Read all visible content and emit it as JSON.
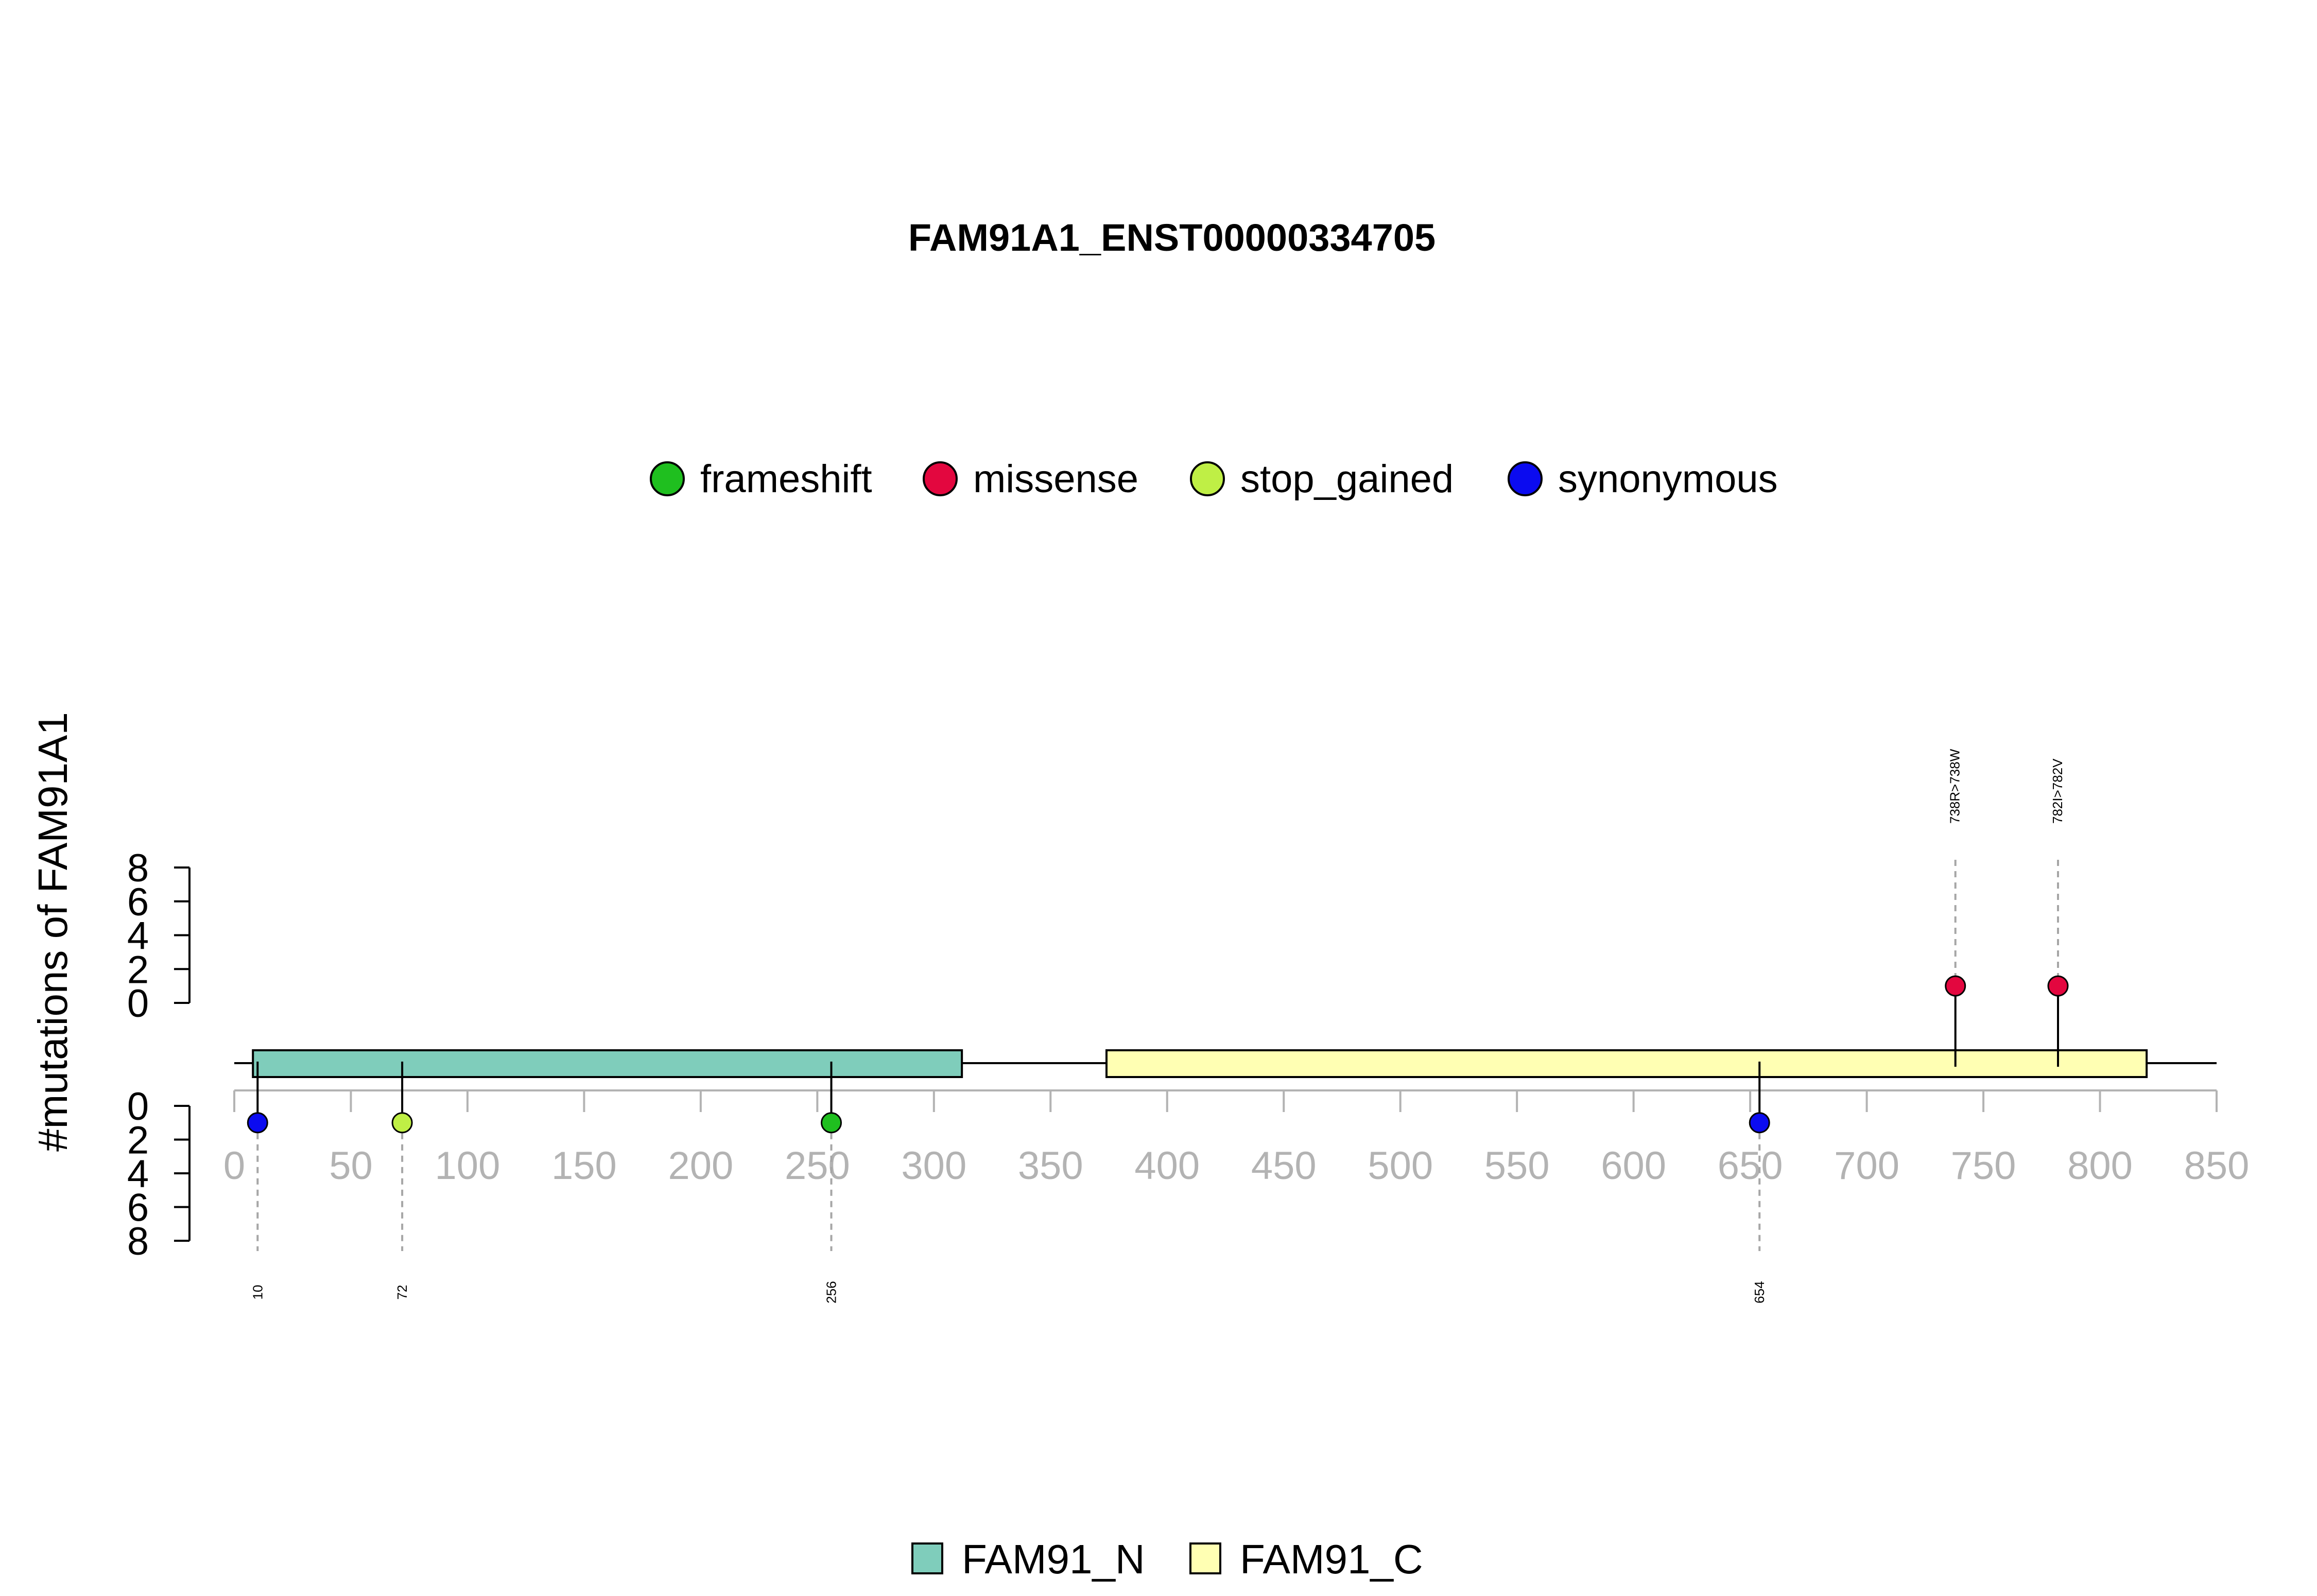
{
  "chart_data": {
    "type": "lollipop",
    "title": "FAM91A1_ENST00000334705",
    "ylabel": "#mutations of FAM91A1",
    "x_ticks": [
      0,
      50,
      100,
      150,
      200,
      250,
      300,
      350,
      400,
      450,
      500,
      550,
      600,
      650,
      700,
      750,
      800,
      850
    ],
    "xlim": [
      0,
      850
    ],
    "y_ticks": [
      0,
      2,
      4,
      6,
      8
    ],
    "ylim": [
      0,
      8
    ],
    "mutation_types": [
      {
        "name": "frameshift",
        "color": "#1fbf1f"
      },
      {
        "name": "missense",
        "color": "#e3073f"
      },
      {
        "name": "stop_gained",
        "color": "#bfef45"
      },
      {
        "name": "synonymous",
        "color": "#0b0bf0"
      }
    ],
    "domains": [
      {
        "name": "FAM91_N",
        "start": 8,
        "end": 312,
        "color": "#7fcdbb"
      },
      {
        "name": "FAM91_C",
        "start": 374,
        "end": 820,
        "color": "#ffffb3"
      }
    ],
    "mutations_top": [
      {
        "position": 738,
        "count": 1,
        "type": "missense",
        "label": "738R>738W"
      },
      {
        "position": 782,
        "count": 1,
        "type": "missense",
        "label": "782I>782V"
      }
    ],
    "mutations_bottom": [
      {
        "position": 10,
        "count": 1,
        "type": "synonymous",
        "label": "10"
      },
      {
        "position": 72,
        "count": 1,
        "type": "stop_gained",
        "label": "72"
      },
      {
        "position": 256,
        "count": 1,
        "type": "frameshift",
        "label": "256"
      },
      {
        "position": 654,
        "count": 1,
        "type": "synonymous",
        "label": "654"
      }
    ],
    "legend_top_placement": "top-center",
    "legend_bottom_placement": "bottom-center",
    "grid": false
  }
}
